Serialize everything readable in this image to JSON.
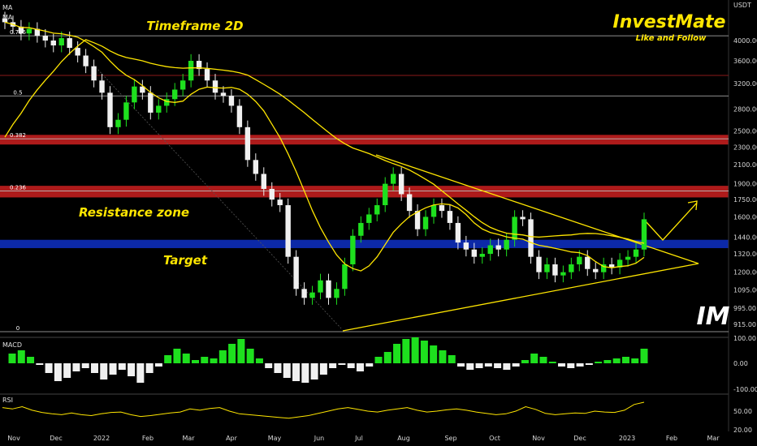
{
  "chart_data": [
    {
      "type": "candlestick",
      "title": "Timeframe 2D",
      "indicator_labels": [
        "MA",
        "MA"
      ],
      "currency": "USDT",
      "y_ticks": [
        915,
        995,
        1095,
        1200,
        1320,
        1440,
        1600,
        1750,
        1900,
        2100,
        2300,
        2500,
        2800,
        3200,
        3600,
        4000
      ],
      "x_ticks": [
        "Nov",
        "Dec",
        "2022",
        "Feb",
        "Mar",
        "Apr",
        "May",
        "Jun",
        "Jul",
        "Aug",
        "Sep",
        "Oct",
        "Nov",
        "Dec",
        "2023",
        "Feb",
        "Mar"
      ],
      "fib_levels": [
        {
          "label": "0.786",
          "price": 4100
        },
        {
          "label": "0.5",
          "price": 3000
        },
        {
          "label": "0.382",
          "price": 2400
        },
        {
          "label": "0.236",
          "price": 1830
        },
        {
          "label": "0",
          "price": 900
        }
      ],
      "zones": [
        {
          "label": "Resistance zone",
          "low": 2330,
          "high": 2450,
          "color": "#b71c1c"
        },
        {
          "label": "",
          "low": 1770,
          "high": 1880,
          "color": "#b71c1c"
        },
        {
          "label": "Target",
          "low": 1360,
          "high": 1420,
          "color": "#0d2bb0"
        }
      ],
      "annotations": [
        "Resistance zone",
        "Target"
      ],
      "brand": {
        "name": "InvestMate",
        "tagline": "Like and Follow",
        "logo_text": "IM"
      },
      "closes": [
        4400,
        4300,
        4150,
        4250,
        4100,
        4000,
        3900,
        4050,
        3850,
        3700,
        3500,
        3250,
        3050,
        2550,
        2650,
        2900,
        3150,
        3050,
        2750,
        2850,
        2950,
        3100,
        3250,
        3600,
        3450,
        3250,
        3050,
        3000,
        2850,
        2550,
        2150,
        2000,
        1850,
        1750,
        1700,
        1300,
        1100,
        1050,
        1080,
        1150,
        1050,
        1100,
        1250,
        1450,
        1550,
        1620,
        1700,
        1900,
        2000,
        1800,
        1650,
        1500,
        1600,
        1700,
        1650,
        1550,
        1400,
        1350,
        1300,
        1320,
        1380,
        1350,
        1420,
        1600,
        1580,
        1300,
        1200,
        1250,
        1180,
        1200,
        1250,
        1300,
        1220,
        1200,
        1250,
        1230,
        1280,
        1300,
        1350,
        1580
      ],
      "ma_fast_label": "MA",
      "ma_slow_label": "MA"
    },
    {
      "type": "histogram",
      "title": "MACD",
      "y_ticks": [
        "100.00",
        "0.00",
        "-100.00"
      ],
      "values": [
        30,
        40,
        20,
        -5,
        -30,
        -55,
        -45,
        -25,
        -15,
        -30,
        -50,
        -35,
        -20,
        -40,
        -60,
        -30,
        -10,
        25,
        45,
        30,
        10,
        20,
        15,
        40,
        60,
        75,
        45,
        15,
        -15,
        -30,
        -45,
        -55,
        -60,
        -50,
        -35,
        -15,
        -5,
        -15,
        -25,
        -10,
        20,
        35,
        60,
        75,
        80,
        70,
        55,
        40,
        25,
        -10,
        -20,
        -15,
        -10,
        -15,
        -20,
        -10,
        10,
        30,
        20,
        5,
        -10,
        -15,
        -10,
        -5,
        5,
        10,
        15,
        20,
        15,
        45
      ]
    },
    {
      "type": "line",
      "title": "RSI",
      "y_ticks": [
        "50.00",
        "20.00"
      ],
      "values": [
        58,
        55,
        60,
        52,
        47,
        44,
        42,
        46,
        42,
        40,
        44,
        47,
        48,
        42,
        38,
        40,
        43,
        46,
        48,
        55,
        52,
        56,
        58,
        50,
        44,
        42,
        40,
        38,
        36,
        34,
        37,
        40,
        45,
        50,
        55,
        58,
        54,
        50,
        48,
        52,
        55,
        58,
        52,
        48,
        50,
        53,
        55,
        52,
        48,
        45,
        42,
        44,
        50,
        60,
        54,
        45,
        42,
        44,
        46,
        45,
        50,
        48,
        47,
        52,
        65,
        70
      ]
    }
  ]
}
